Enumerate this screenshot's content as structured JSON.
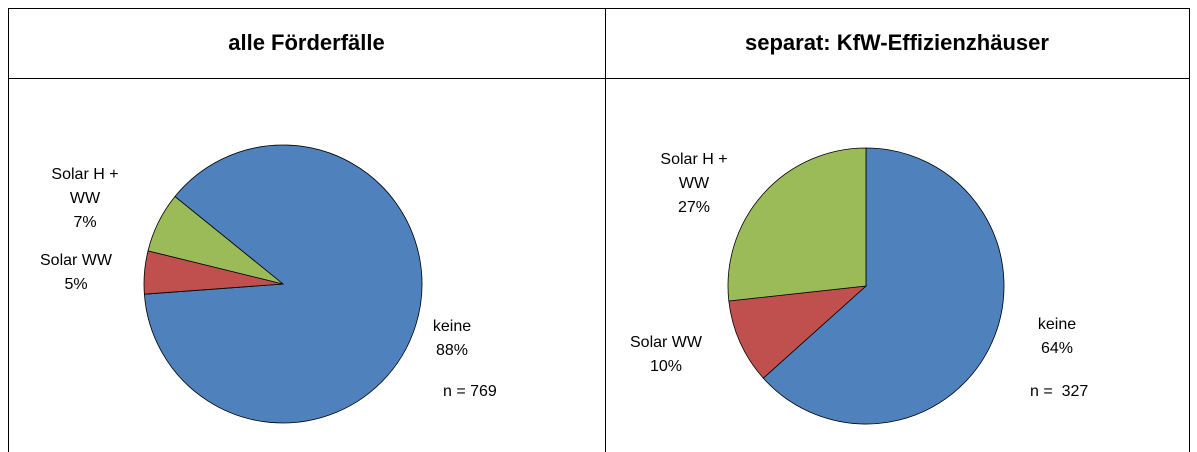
{
  "chart_data": [
    {
      "type": "pie",
      "title": "alle Förderfälle",
      "categories": [
        "keine",
        "Solar WW",
        "Solar H + WW"
      ],
      "values": [
        88,
        5,
        7
      ],
      "value_labels": [
        "88%",
        "5%",
        "7%"
      ],
      "colors": [
        "#4f81bd",
        "#c0504d",
        "#9bbb59"
      ],
      "start_angle": 309,
      "annotation": "n = 769"
    },
    {
      "type": "pie",
      "title": "separat: KfW-Effizienzhäuser",
      "categories": [
        "keine",
        "Solar WW",
        "Solar H + WW"
      ],
      "values": [
        64,
        10,
        27
      ],
      "value_labels": [
        "64%",
        "10%",
        "27%"
      ],
      "colors": [
        "#4f81bd",
        "#c0504d",
        "#9bbb59"
      ],
      "start_angle": 0,
      "annotation": "n =  327"
    }
  ]
}
